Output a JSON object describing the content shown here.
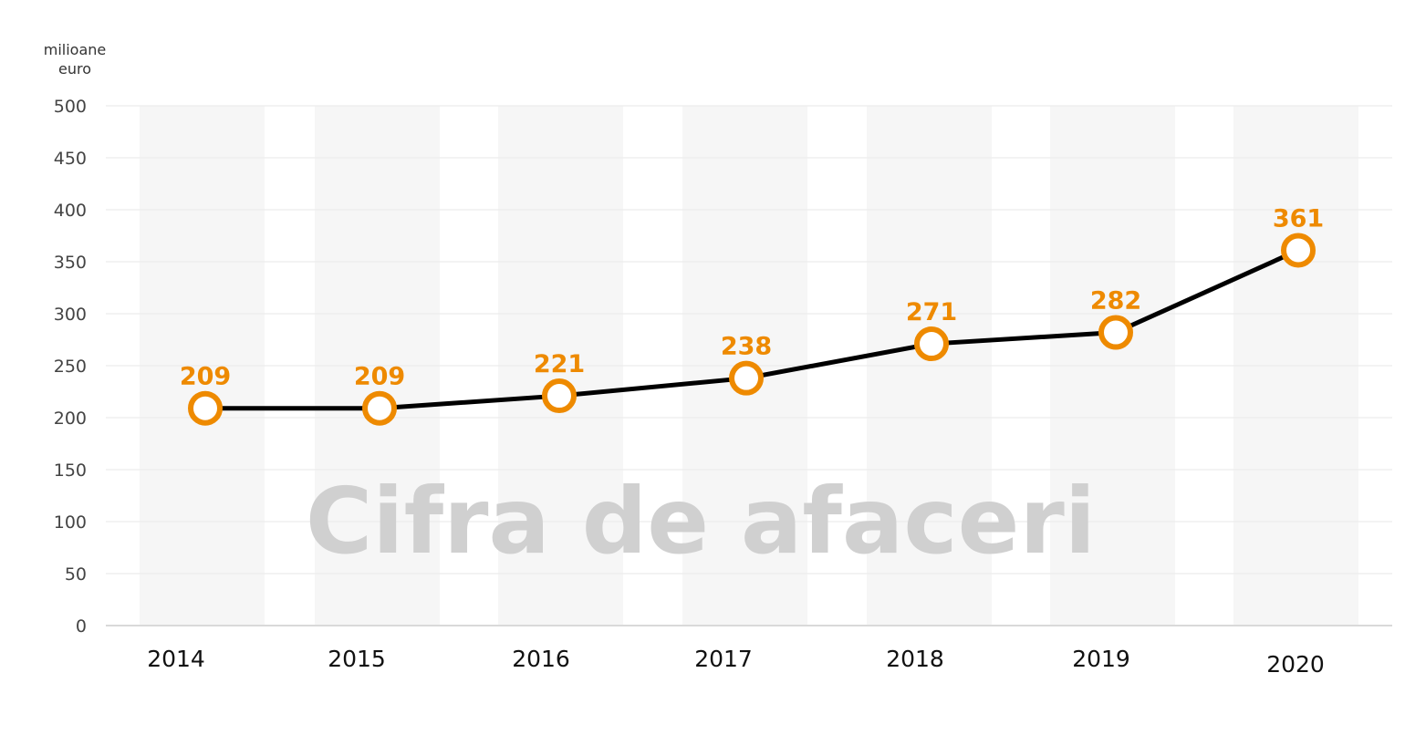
{
  "watermark": "Cifra de afaceri",
  "unit_label": "milioane\neuro",
  "colors": {
    "line": "#000000",
    "marker": "#ee8a00",
    "data_label": "#ee8a00",
    "band": "#f6f6f6",
    "grid": "#ececec",
    "axis": "#d9d9d9",
    "watermark": "#d0d0d0"
  },
  "chart_data": {
    "type": "line",
    "categories": [
      "2014",
      "2015",
      "2016",
      "2017",
      "2018",
      "2019",
      "2020"
    ],
    "series": [
      {
        "values": [
          209,
          209,
          221,
          238,
          271,
          282,
          361
        ]
      }
    ],
    "data_labels": [
      "209",
      "209",
      "221",
      "238",
      "271",
      "282",
      "361"
    ],
    "ylim": [
      0,
      500
    ],
    "yticks": [
      0,
      50,
      100,
      150,
      200,
      250,
      300,
      350,
      400,
      450,
      500
    ],
    "ylabel": "milioane euro",
    "xlabel": "",
    "grid": true,
    "legend": "none"
  }
}
